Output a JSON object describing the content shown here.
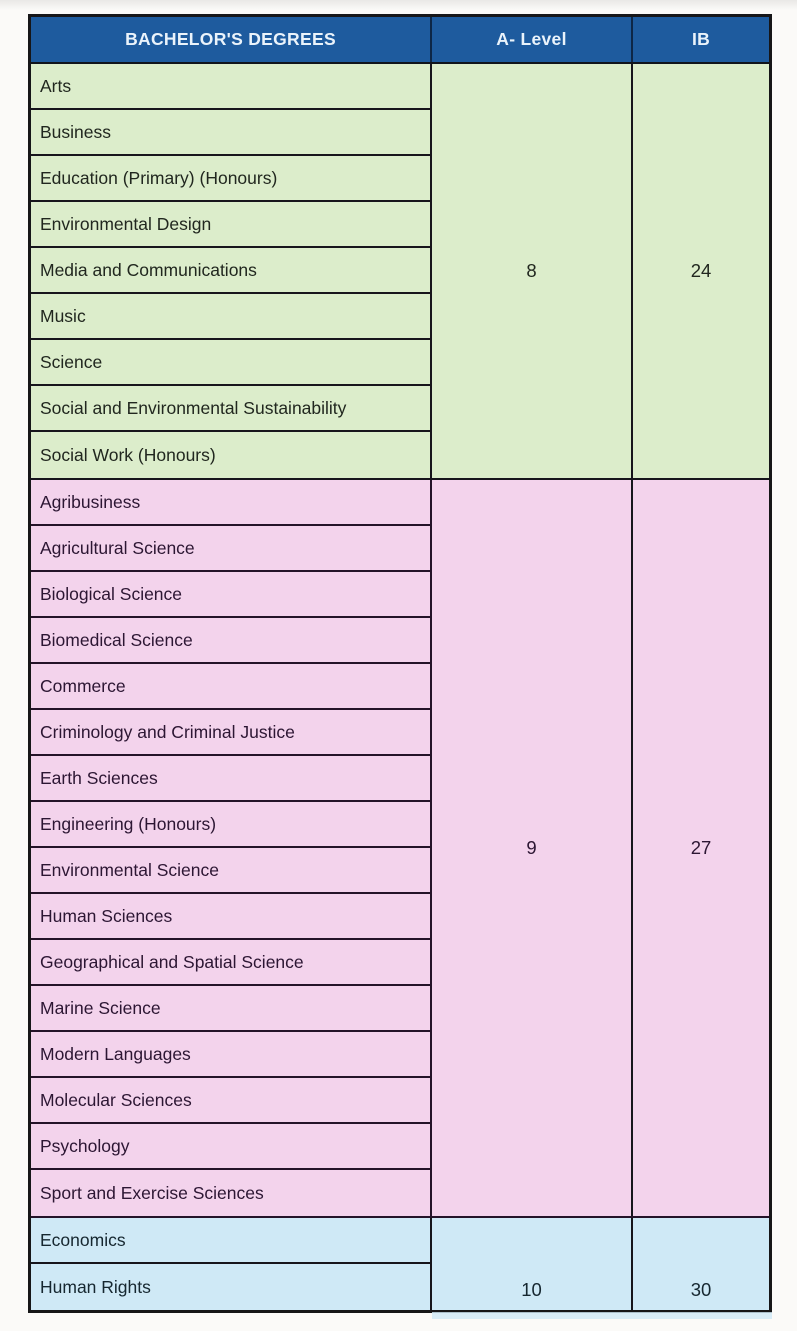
{
  "table": {
    "header": {
      "degree_col": "BACHELOR'S DEGREES",
      "alevel_col": "A- Level",
      "ib_col": "IB"
    },
    "sections": [
      {
        "id": "green",
        "bg": "#dcedcb",
        "a_level": "8",
        "ib": "24",
        "degrees": [
          "Arts",
          "Business",
          "Education (Primary) (Honours)",
          "Environmental Design",
          "Media and Communications",
          "Music",
          "Science",
          "Social and Environmental Sustainability",
          "Social Work (Honours)"
        ]
      },
      {
        "id": "pink",
        "bg": "#f3d3ec",
        "a_level": "9",
        "ib": "27",
        "degrees": [
          "Agribusiness",
          "Agricultural Science",
          "Biological Science",
          "Biomedical Science",
          "Commerce",
          "Criminology and Criminal Justice",
          "Earth Sciences",
          "Engineering (Honours)",
          "Environmental Science",
          "Human Sciences",
          "Geographical and Spatial Science",
          "Marine Science",
          "Modern Languages",
          "Molecular Sciences",
          "Psychology",
          "Sport and Exercise Sciences"
        ]
      },
      {
        "id": "blue",
        "bg": "#cfe9f6",
        "a_level": "10",
        "ib": "30",
        "degrees": [
          "Economics",
          "Human Rights"
        ]
      }
    ],
    "colors": {
      "header_bg": "#1e5b9e",
      "header_text": "#eaf3fb",
      "border": "#17151c",
      "green_bg": "#dcedcb",
      "pink_bg": "#f3d3ec",
      "blue_bg": "#cfe9f6"
    }
  }
}
